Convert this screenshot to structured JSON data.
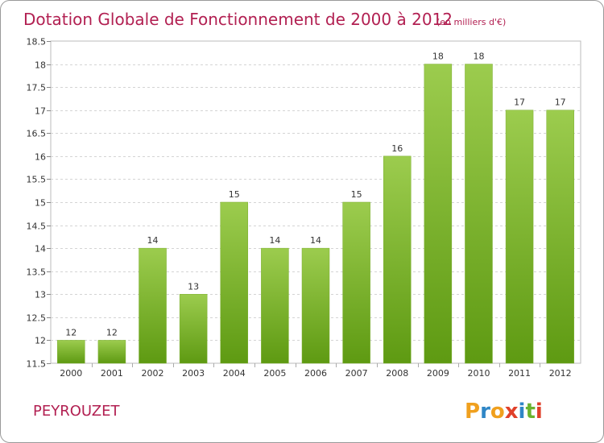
{
  "chart_data": {
    "type": "bar",
    "title": "Dotation Globale de Fonctionnement de 2000 à 2012",
    "subtitle": "(en milliers d'€)",
    "categories": [
      "2000",
      "2001",
      "2002",
      "2003",
      "2004",
      "2005",
      "2006",
      "2007",
      "2008",
      "2009",
      "2010",
      "2011",
      "2012"
    ],
    "values": [
      12,
      12,
      14,
      13,
      15,
      14,
      14,
      15,
      16,
      18,
      18,
      17,
      17
    ],
    "data_labels": [
      "12",
      "12",
      "14",
      "13",
      "15",
      "14",
      "14",
      "15",
      "16",
      "18",
      "18",
      "17",
      "17"
    ],
    "ylim": [
      11.5,
      18.5
    ],
    "yticks": [
      11.5,
      12,
      12.5,
      13,
      13.5,
      14,
      14.5,
      15,
      15.5,
      16,
      16.5,
      17,
      17.5,
      18,
      18.5
    ],
    "ytick_labels": [
      "11.5",
      "12",
      "12.5",
      "13",
      "13.5",
      "14",
      "14.5",
      "15",
      "15.5",
      "16",
      "16.5",
      "17",
      "17.5",
      "18",
      "18.5"
    ],
    "grid": true,
    "bar_color_top": "#9ccc4e",
    "bar_color_bottom": "#5e9a12"
  },
  "footer": {
    "commune": "PEYROUZET",
    "logo_letters": [
      "P",
      "r",
      "o",
      "x",
      "i",
      "t",
      "i"
    ],
    "logo_colors": [
      "#f0a01e",
      "#2f86c6",
      "#f0a01e",
      "#e0402a",
      "#2f86c6",
      "#6ab32e",
      "#e0402a"
    ]
  }
}
